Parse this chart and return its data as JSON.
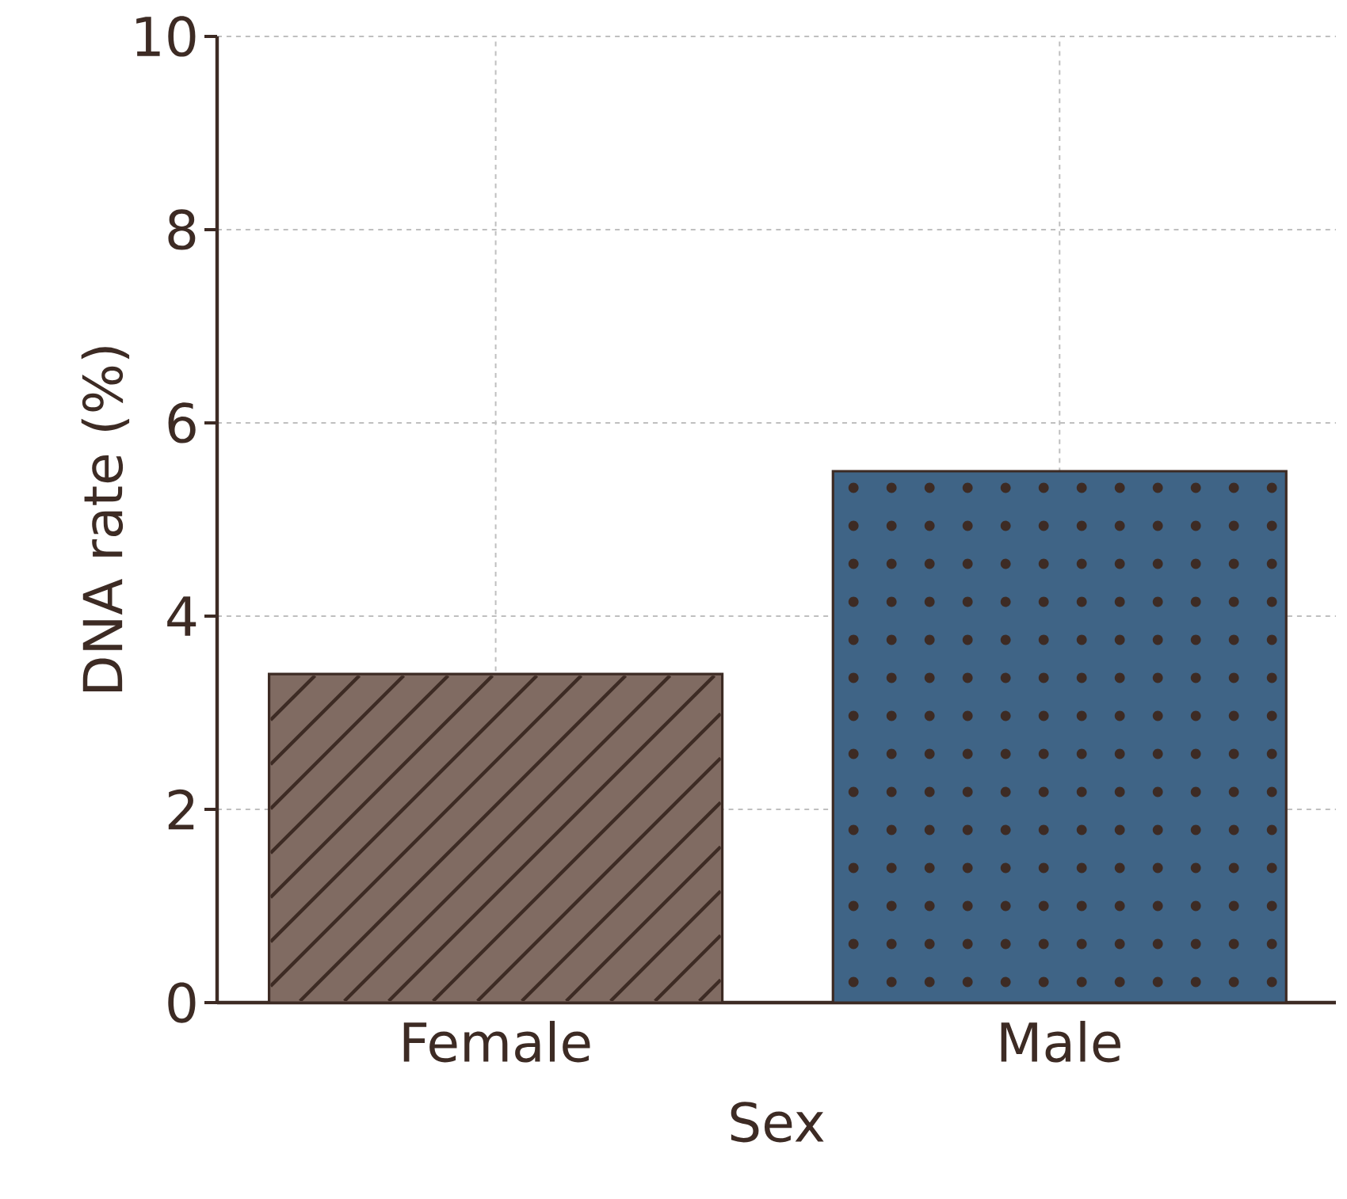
{
  "chart_data": {
    "type": "bar",
    "xlabel": "Sex",
    "ylabel": "DNA rate (%)",
    "categories": [
      "Female",
      "Male"
    ],
    "values": [
      3.4,
      5.5
    ],
    "colors": [
      "#806b62",
      "#3f6486"
    ],
    "ylim": [
      0,
      10
    ],
    "yticks": [
      0,
      2,
      4,
      6,
      8,
      10
    ],
    "grid": true
  }
}
